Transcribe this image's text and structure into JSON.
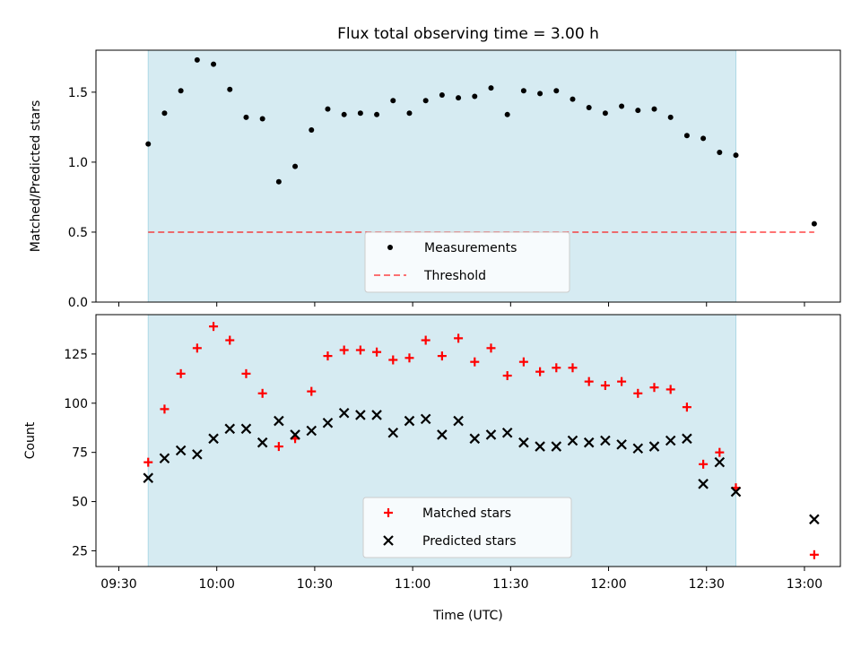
{
  "title": "Flux total observing time = 3.00 h",
  "colors": {
    "shade": "#add8e6",
    "measure": "#000000",
    "threshold": "#ff0000",
    "matched": "#ff0000",
    "predicted": "#000000"
  },
  "chart_data": [
    {
      "type": "scatter",
      "ylabel": "Matched/Predicted stars",
      "ylim": [
        0,
        1.8
      ],
      "yticks": [
        0.0,
        0.5,
        1.0,
        1.5
      ],
      "ytick_labels": [
        "0.0",
        "0.5",
        "1.0",
        "1.5"
      ],
      "shaded_range": [
        "09:39",
        "12:39"
      ],
      "series": [
        {
          "name": "Measurements",
          "marker": "dot",
          "points": [
            [
              "09:39",
              1.13
            ],
            [
              "09:44",
              1.35
            ],
            [
              "09:49",
              1.51
            ],
            [
              "09:54",
              1.73
            ],
            [
              "09:59",
              1.7
            ],
            [
              "10:04",
              1.52
            ],
            [
              "10:09",
              1.32
            ],
            [
              "10:14",
              1.31
            ],
            [
              "10:19",
              0.86
            ],
            [
              "10:24",
              0.97
            ],
            [
              "10:29",
              1.23
            ],
            [
              "10:34",
              1.38
            ],
            [
              "10:39",
              1.34
            ],
            [
              "10:44",
              1.35
            ],
            [
              "10:49",
              1.34
            ],
            [
              "10:54",
              1.44
            ],
            [
              "10:59",
              1.35
            ],
            [
              "11:04",
              1.44
            ],
            [
              "11:09",
              1.48
            ],
            [
              "11:14",
              1.46
            ],
            [
              "11:19",
              1.47
            ],
            [
              "11:24",
              1.53
            ],
            [
              "11:29",
              1.34
            ],
            [
              "11:34",
              1.51
            ],
            [
              "11:39",
              1.49
            ],
            [
              "11:44",
              1.51
            ],
            [
              "11:49",
              1.45
            ],
            [
              "11:54",
              1.39
            ],
            [
              "11:59",
              1.35
            ],
            [
              "12:04",
              1.4
            ],
            [
              "12:09",
              1.37
            ],
            [
              "12:14",
              1.38
            ],
            [
              "12:19",
              1.32
            ],
            [
              "12:24",
              1.19
            ],
            [
              "12:29",
              1.17
            ],
            [
              "12:34",
              1.07
            ],
            [
              "12:39",
              1.05
            ],
            [
              "13:03",
              0.56
            ]
          ]
        },
        {
          "name": "Threshold",
          "marker": "dashed-line",
          "points": [
            [
              "09:39",
              0.5
            ],
            [
              "13:03",
              0.5
            ]
          ]
        }
      ],
      "legend": {
        "placement": "lower center",
        "entries": [
          "Measurements",
          "Threshold"
        ]
      }
    },
    {
      "type": "scatter",
      "xlabel": "Time (UTC)",
      "ylabel": "Count",
      "ylim": [
        17,
        145
      ],
      "yticks": [
        25,
        50,
        75,
        100,
        125
      ],
      "ytick_labels": [
        "25",
        "50",
        "75",
        "100",
        "125"
      ],
      "xticks": [
        "09:30",
        "10:00",
        "10:30",
        "11:00",
        "11:30",
        "12:00",
        "12:30",
        "13:00"
      ],
      "shaded_range": [
        "09:39",
        "12:39"
      ],
      "series": [
        {
          "name": "Matched stars",
          "marker": "plus",
          "points": [
            [
              "09:39",
              70
            ],
            [
              "09:44",
              97
            ],
            [
              "09:49",
              115
            ],
            [
              "09:54",
              128
            ],
            [
              "09:59",
              139
            ],
            [
              "10:04",
              132
            ],
            [
              "10:09",
              115
            ],
            [
              "10:14",
              105
            ],
            [
              "10:19",
              78
            ],
            [
              "10:24",
              82
            ],
            [
              "10:29",
              106
            ],
            [
              "10:34",
              124
            ],
            [
              "10:39",
              127
            ],
            [
              "10:44",
              127
            ],
            [
              "10:49",
              126
            ],
            [
              "10:54",
              122
            ],
            [
              "10:59",
              123
            ],
            [
              "11:04",
              132
            ],
            [
              "11:09",
              124
            ],
            [
              "11:14",
              133
            ],
            [
              "11:19",
              121
            ],
            [
              "11:24",
              128
            ],
            [
              "11:29",
              114
            ],
            [
              "11:34",
              121
            ],
            [
              "11:39",
              116
            ],
            [
              "11:44",
              118
            ],
            [
              "11:49",
              118
            ],
            [
              "11:54",
              111
            ],
            [
              "11:59",
              109
            ],
            [
              "12:04",
              111
            ],
            [
              "12:09",
              105
            ],
            [
              "12:14",
              108
            ],
            [
              "12:19",
              107
            ],
            [
              "12:24",
              98
            ],
            [
              "12:29",
              69
            ],
            [
              "12:34",
              75
            ],
            [
              "12:39",
              57
            ],
            [
              "13:03",
              23
            ]
          ]
        },
        {
          "name": "Predicted stars",
          "marker": "x",
          "points": [
            [
              "09:39",
              62
            ],
            [
              "09:44",
              72
            ],
            [
              "09:49",
              76
            ],
            [
              "09:54",
              74
            ],
            [
              "09:59",
              82
            ],
            [
              "10:04",
              87
            ],
            [
              "10:09",
              87
            ],
            [
              "10:14",
              80
            ],
            [
              "10:19",
              91
            ],
            [
              "10:24",
              84
            ],
            [
              "10:29",
              86
            ],
            [
              "10:34",
              90
            ],
            [
              "10:39",
              95
            ],
            [
              "10:44",
              94
            ],
            [
              "10:49",
              94
            ],
            [
              "10:54",
              85
            ],
            [
              "10:59",
              91
            ],
            [
              "11:04",
              92
            ],
            [
              "11:09",
              84
            ],
            [
              "11:14",
              91
            ],
            [
              "11:19",
              82
            ],
            [
              "11:24",
              84
            ],
            [
              "11:29",
              85
            ],
            [
              "11:34",
              80
            ],
            [
              "11:39",
              78
            ],
            [
              "11:44",
              78
            ],
            [
              "11:49",
              81
            ],
            [
              "11:54",
              80
            ],
            [
              "11:59",
              81
            ],
            [
              "12:04",
              79
            ],
            [
              "12:09",
              77
            ],
            [
              "12:14",
              78
            ],
            [
              "12:19",
              81
            ],
            [
              "12:24",
              82
            ],
            [
              "12:29",
              59
            ],
            [
              "12:34",
              70
            ],
            [
              "12:39",
              55
            ],
            [
              "13:03",
              41
            ]
          ]
        }
      ],
      "legend": {
        "placement": "lower center",
        "entries": [
          "Matched stars",
          "Predicted stars"
        ]
      }
    }
  ]
}
